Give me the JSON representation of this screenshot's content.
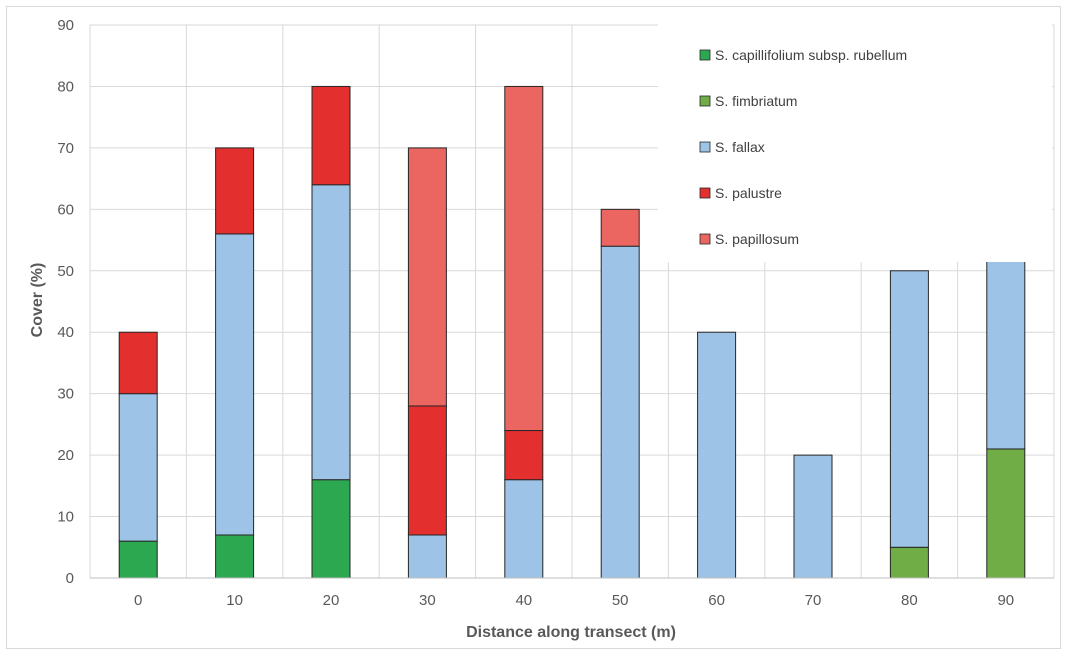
{
  "chart_data": {
    "type": "bar",
    "stacked": true,
    "categories": [
      "0",
      "10",
      "20",
      "30",
      "40",
      "50",
      "60",
      "70",
      "80",
      "90"
    ],
    "xlabel": "Distance along transect (m)",
    "ylabel": "Cover (%)",
    "ylim": [
      0,
      90
    ],
    "yticks": [
      "0",
      "10",
      "20",
      "30",
      "40",
      "50",
      "60",
      "70",
      "80",
      "90"
    ],
    "grid": true,
    "legend_position": "top-right",
    "series": [
      {
        "name": "S. capillifolium subsp. rubellum",
        "color": "#2ca850",
        "values": [
          6,
          7,
          16,
          0,
          0,
          0,
          0,
          0,
          0,
          0
        ]
      },
      {
        "name": "S. fimbriatum",
        "color": "#70ad47",
        "values": [
          0,
          0,
          0,
          0,
          0,
          0,
          0,
          0,
          5,
          21
        ]
      },
      {
        "name": "S. fallax",
        "color": "#9dc3e6",
        "values": [
          24,
          49,
          48,
          7,
          16,
          54,
          40,
          20,
          45,
          49
        ]
      },
      {
        "name": "S. palustre",
        "color": "#e3302f",
        "values": [
          10,
          14,
          16,
          21,
          8,
          0,
          0,
          0,
          0,
          0
        ]
      },
      {
        "name": "S. papillosum",
        "color": "#eb6660",
        "values": [
          0,
          0,
          0,
          42,
          56,
          6,
          0,
          0,
          0,
          0
        ]
      }
    ]
  }
}
